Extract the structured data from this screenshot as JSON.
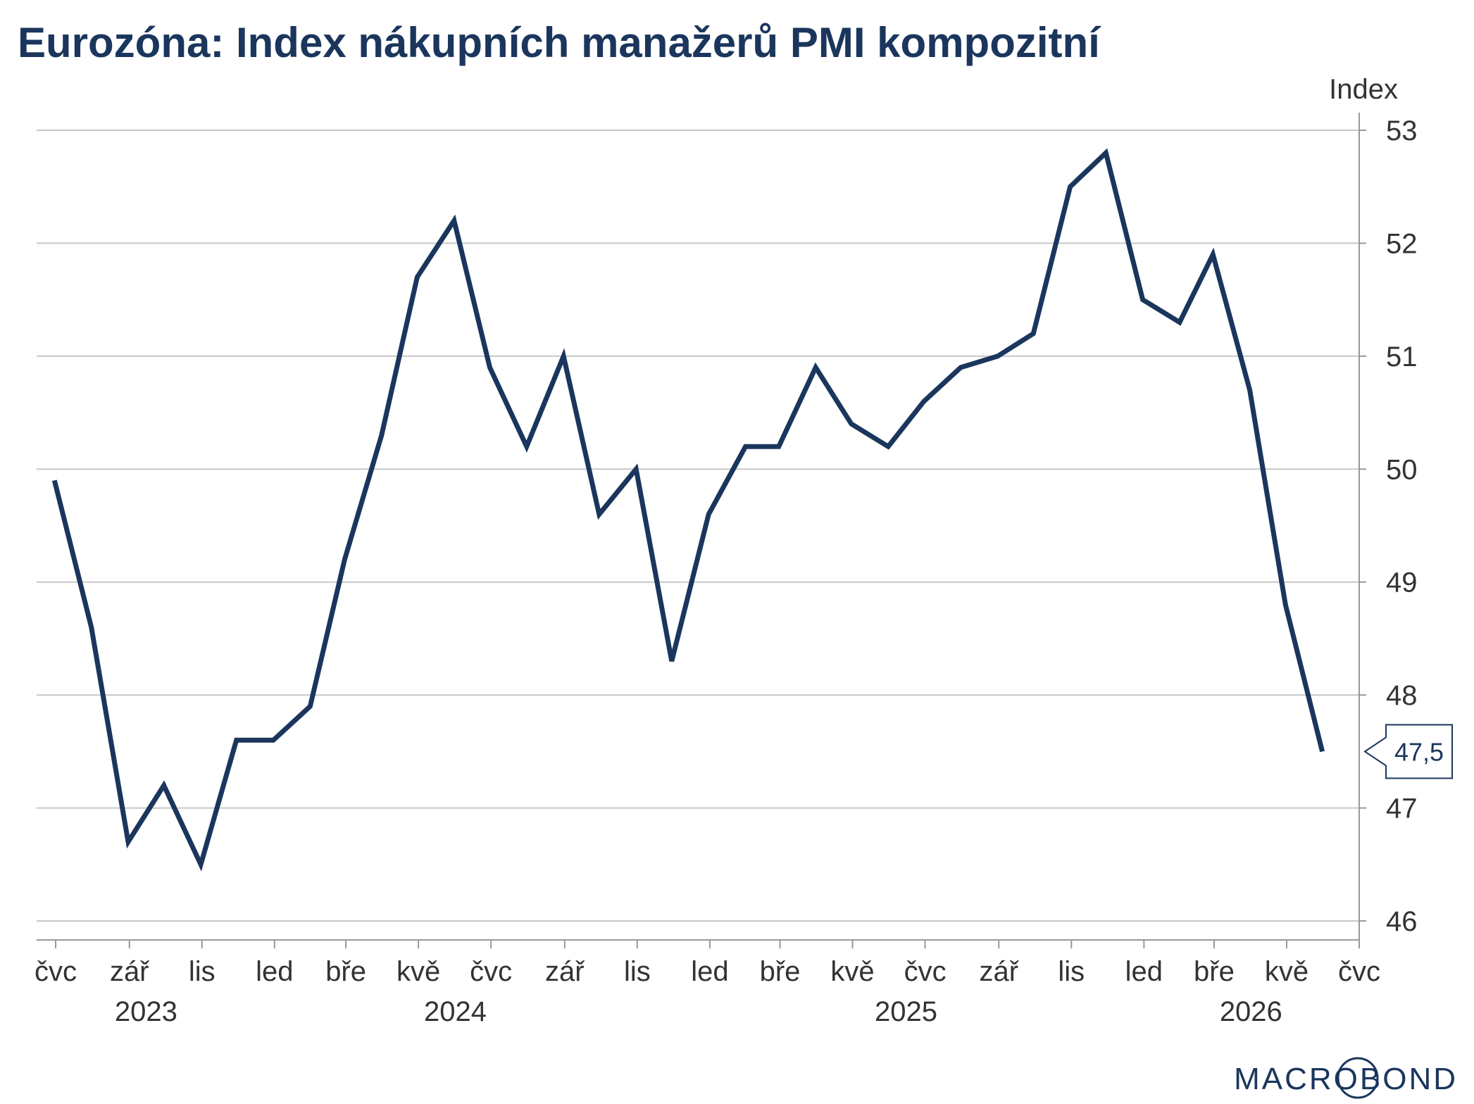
{
  "title": "Eurozóna: Index nákupních manažerů PMI kompozitní",
  "logo": "MACROBOND",
  "colors": {
    "line": "#1b365d",
    "grid": "#c8c8c8",
    "axis": "#999999",
    "text": "#333333"
  },
  "chart_data": {
    "type": "line",
    "title": "Eurozóna: Index nákupních manažerů PMI kompozitní",
    "unit_label": "Index",
    "y_axis_side": "right",
    "grid": true,
    "ylim": [
      46,
      53
    ],
    "y_ticks": [
      46,
      47,
      48,
      49,
      50,
      51,
      52,
      53
    ],
    "x_range": [
      "2023-06-15",
      "2026-07-01"
    ],
    "x_ticks": [
      {
        "date": "2023-07-01",
        "label": "čvc"
      },
      {
        "date": "2023-09-01",
        "label": "zář"
      },
      {
        "date": "2023-11-01",
        "label": "lis"
      },
      {
        "date": "2024-01-01",
        "label": "led"
      },
      {
        "date": "2024-03-01",
        "label": "bře"
      },
      {
        "date": "2024-05-01",
        "label": "kvě"
      },
      {
        "date": "2024-07-01",
        "label": "čvc"
      },
      {
        "date": "2024-09-01",
        "label": "zář"
      },
      {
        "date": "2024-11-01",
        "label": "lis"
      },
      {
        "date": "2025-01-01",
        "label": "led"
      },
      {
        "date": "2025-03-01",
        "label": "bře"
      },
      {
        "date": "2025-05-01",
        "label": "kvě"
      },
      {
        "date": "2025-07-01",
        "label": "čvc"
      },
      {
        "date": "2025-09-01",
        "label": "zář"
      },
      {
        "date": "2025-11-01",
        "label": "lis"
      },
      {
        "date": "2026-01-01",
        "label": "led"
      },
      {
        "date": "2026-03-01",
        "label": "bře"
      },
      {
        "date": "2026-05-01",
        "label": "kvě"
      },
      {
        "date": "2026-07-01",
        "label": "čvc"
      }
    ],
    "year_labels": [
      {
        "label": "2023",
        "date": "2023-09-15"
      },
      {
        "label": "2024",
        "date": "2024-06-01"
      },
      {
        "label": "2025",
        "date": "2025-06-15"
      },
      {
        "label": "2026",
        "date": "2026-04-01"
      }
    ],
    "series": [
      {
        "dates": [
          "2023-06-30",
          "2023-07-31",
          "2023-08-31",
          "2023-09-30",
          "2023-10-31",
          "2023-11-30",
          "2023-12-31",
          "2024-01-31",
          "2024-02-29",
          "2024-03-31",
          "2024-04-30",
          "2024-05-31",
          "2024-06-30",
          "2024-07-31",
          "2024-08-31",
          "2024-09-30",
          "2024-10-31",
          "2024-11-30",
          "2024-12-31",
          "2025-01-31",
          "2025-02-28",
          "2025-03-31",
          "2025-04-30",
          "2025-05-31",
          "2025-06-30",
          "2025-07-31",
          "2025-08-31",
          "2025-09-30",
          "2025-10-31",
          "2025-11-30",
          "2025-12-31",
          "2026-01-31",
          "2026-02-28",
          "2026-03-31",
          "2026-04-30",
          "2026-05-31"
        ],
        "values": [
          49.9,
          48.6,
          46.7,
          47.2,
          46.5,
          47.6,
          47.6,
          47.9,
          49.2,
          50.3,
          51.7,
          52.2,
          50.9,
          50.2,
          51.0,
          49.6,
          50.0,
          48.3,
          49.6,
          50.2,
          50.2,
          50.9,
          50.4,
          50.2,
          50.6,
          50.9,
          51.0,
          51.2,
          52.5,
          52.8,
          51.5,
          51.3,
          51.9,
          50.7,
          48.8,
          47.5
        ]
      }
    ],
    "last_value_label": "47,5"
  }
}
